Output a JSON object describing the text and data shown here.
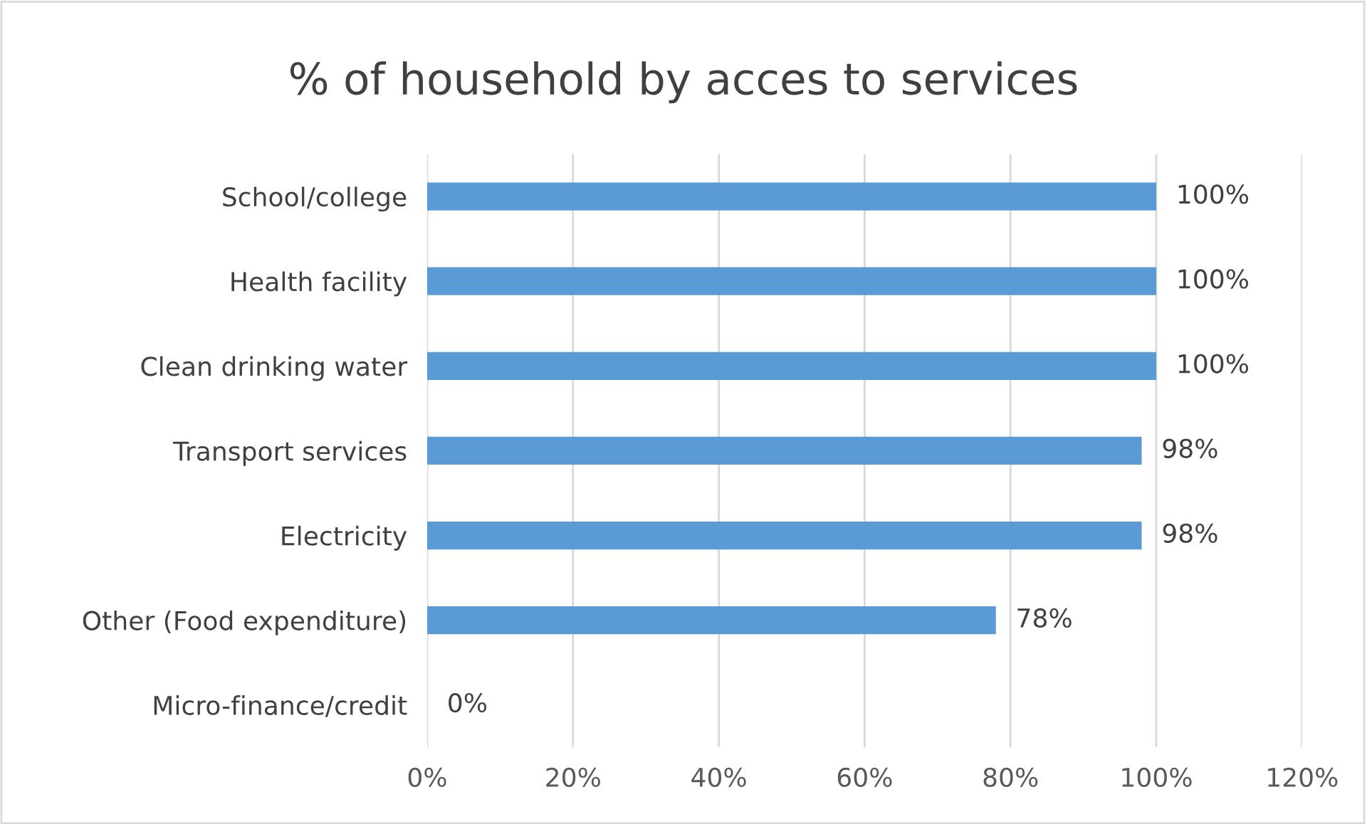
{
  "chart_data": {
    "type": "bar",
    "orientation": "horizontal",
    "title": "% of household by acces to services",
    "categories": [
      "School/college",
      "Health facility",
      "Clean drinking water",
      "Transport services",
      "Electricity",
      "Other (Food expenditure)",
      "Micro-finance/credit"
    ],
    "values": [
      100,
      100,
      100,
      98,
      98,
      78,
      0
    ],
    "value_labels": [
      "100%",
      "100%",
      "100%",
      "98%",
      "98%",
      "78%",
      "0%"
    ],
    "color": "#5b9bd5",
    "xlim": [
      0,
      120
    ],
    "xticks": [
      {
        "value": 0,
        "label": "0%"
      },
      {
        "value": 20,
        "label": "20%"
      },
      {
        "value": 40,
        "label": "40%"
      },
      {
        "value": 60,
        "label": "60%"
      },
      {
        "value": 80,
        "label": "80%"
      },
      {
        "value": 100,
        "label": "100%"
      },
      {
        "value": 120,
        "label": "120%"
      }
    ],
    "grid": "x",
    "legend": false
  }
}
